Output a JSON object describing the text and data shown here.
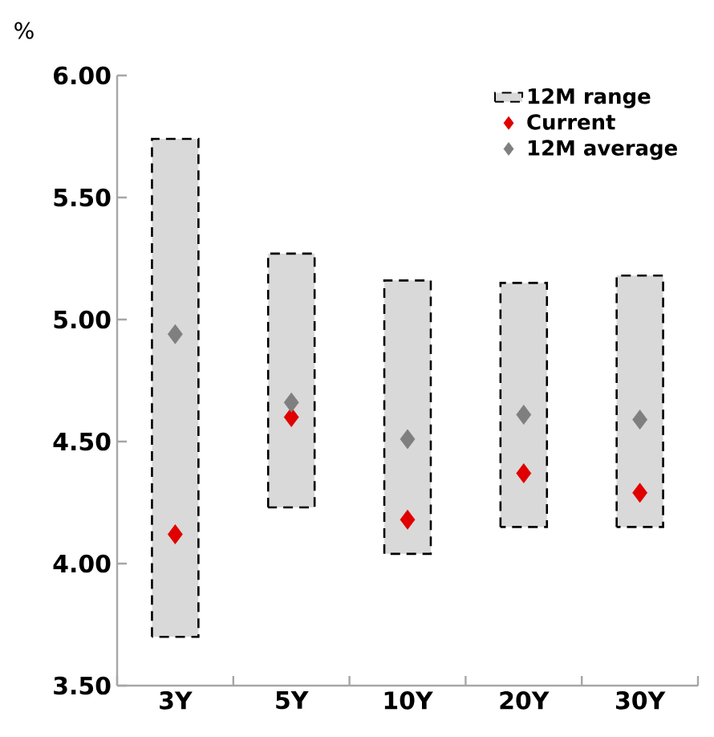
{
  "chart_data": {
    "type": "bar",
    "ylabel": "%",
    "categories": [
      "3Y",
      "5Y",
      "10Y",
      "20Y",
      "30Y"
    ],
    "series": [
      {
        "name": "12M range",
        "color": "#d9d9d9",
        "line_style": "dashed",
        "base": [
          3.7,
          4.23,
          4.04,
          4.15,
          4.15
        ],
        "values": [
          2.04,
          1.04,
          1.12,
          1.0,
          1.03
        ]
      },
      {
        "name": "Current",
        "type": "scatter",
        "color": "#e00000",
        "marker": "diamond",
        "values": [
          4.12,
          4.6,
          4.18,
          4.37,
          4.29
        ]
      },
      {
        "name": "12M average",
        "type": "scatter",
        "color": "#7f7f7f",
        "marker": "diamond",
        "values": [
          4.94,
          4.66,
          4.51,
          4.61,
          4.59
        ]
      }
    ],
    "ylim": [
      3.5,
      6.0
    ],
    "yticks": [
      {
        "value": 3.5,
        "label": "3.50"
      },
      {
        "value": 4.0,
        "label": "4.00"
      },
      {
        "value": 4.5,
        "label": "4.50"
      },
      {
        "value": 5.0,
        "label": "5.00"
      },
      {
        "value": 5.5,
        "label": "5.50"
      },
      {
        "value": 6.0,
        "label": "6.00"
      }
    ],
    "grid": false,
    "legend": "top right"
  }
}
